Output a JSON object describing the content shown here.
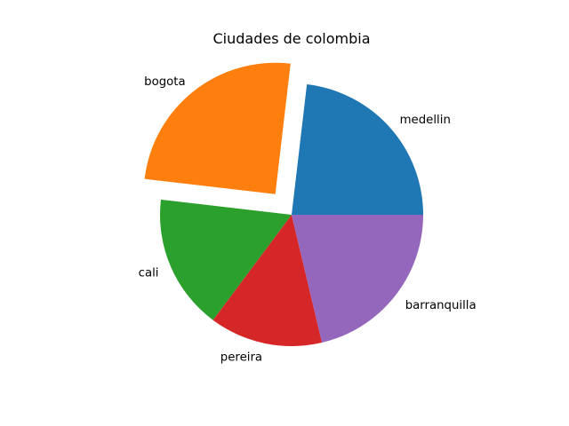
{
  "chart_data": {
    "type": "pie",
    "title": "Ciudades de colombia",
    "categories": [
      "medellin",
      "bogota",
      "cali",
      "pereira",
      "barranquilla"
    ],
    "values": [
      25,
      27,
      18,
      15,
      23
    ],
    "explode": [
      0,
      0.2,
      0,
      0,
      0
    ],
    "start_angle_deg": 0,
    "direction": "counterclockwise",
    "colors": [
      "#1f77b4",
      "#ff7f0e",
      "#2ca02c",
      "#d62728",
      "#9467bd"
    ]
  }
}
